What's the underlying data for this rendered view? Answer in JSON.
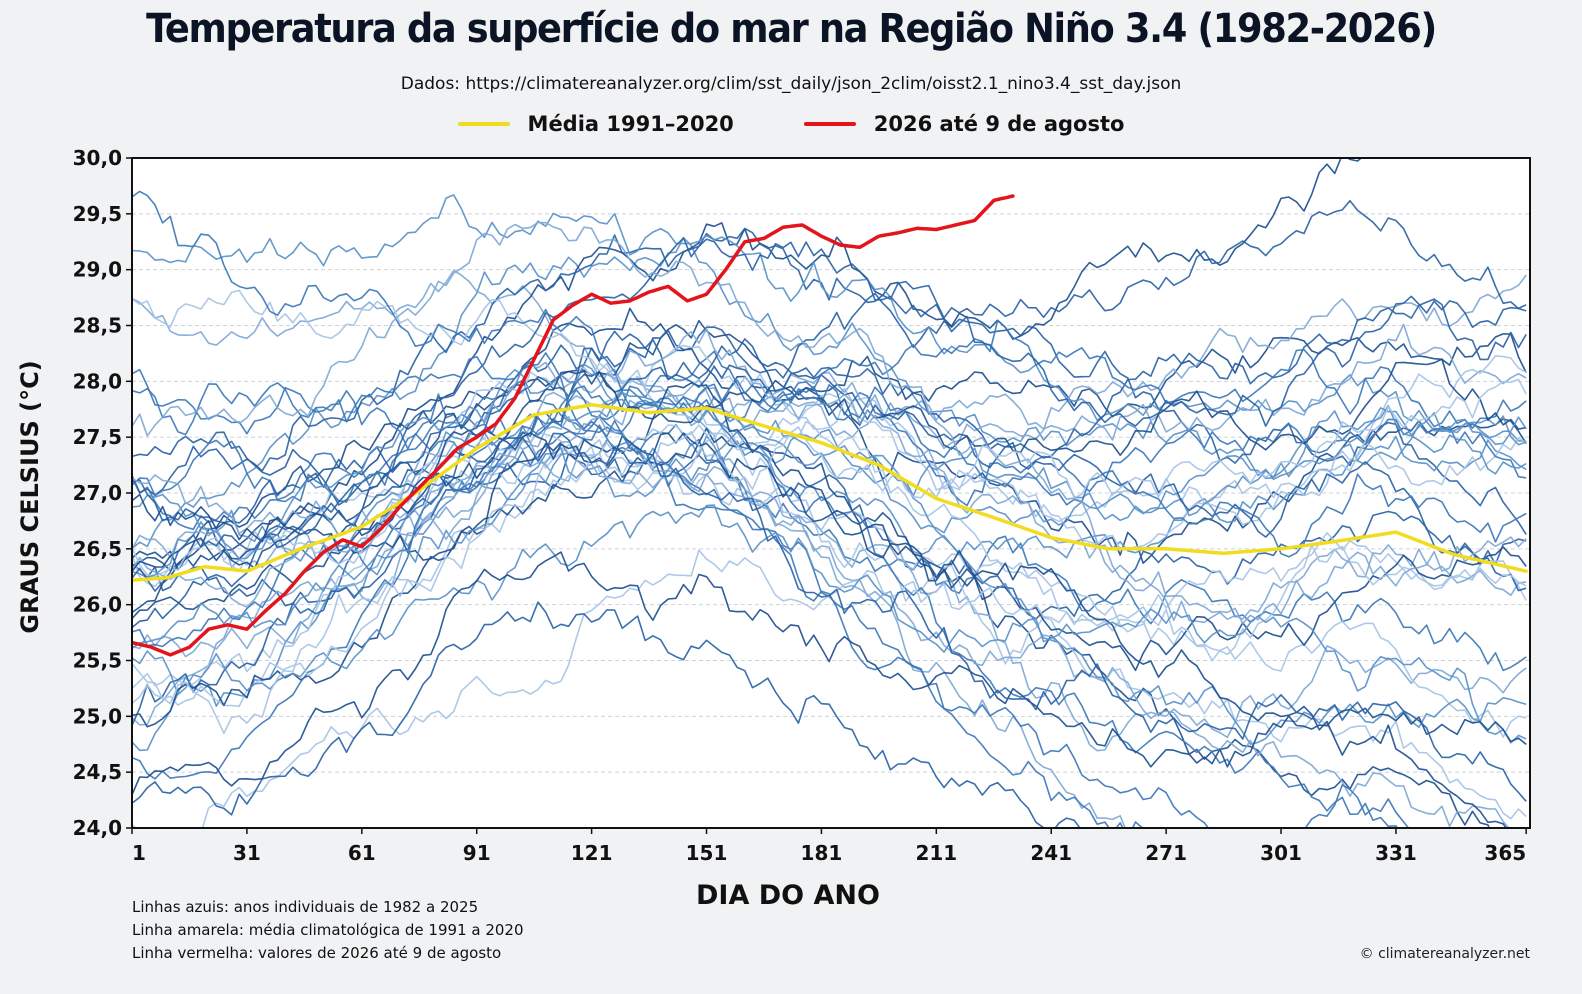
{
  "chart_data": {
    "type": "line",
    "title": "Temperatura da superfície do mar na Região Niño 3.4 (1982-2026)",
    "subtitle": "Dados: https://climatereanalyzer.org/clim/sst_daily/json_2clim/oisst2.1_nino3.4_sst_day.json",
    "xlabel": "DIA DO ANO",
    "ylabel": "GRAUS CELSIUS (°C)",
    "xlim": [
      1,
      366
    ],
    "ylim": [
      24.0,
      30.0
    ],
    "x_ticks": [
      1,
      31,
      61,
      91,
      121,
      151,
      181,
      211,
      241,
      271,
      301,
      331,
      365
    ],
    "y_ticks": [
      "24,0",
      "24,5",
      "25,0",
      "25,5",
      "26,0",
      "26,5",
      "27,0",
      "27,5",
      "28,0",
      "28,5",
      "29,0",
      "29,5",
      "30,0"
    ],
    "y_tick_values": [
      24.0,
      24.5,
      25.0,
      25.5,
      26.0,
      26.5,
      27.0,
      27.5,
      28.0,
      28.5,
      29.0,
      29.5,
      30.0
    ],
    "grid": true,
    "legend_position": "top-center",
    "legend": [
      {
        "label": "Média 1991–2020",
        "color": "#f2dc1f"
      },
      {
        "label": "2026 até 9 de agosto",
        "color": "#e3141b"
      }
    ],
    "series": [
      {
        "name": "Média 1991–2020",
        "color": "#f2dc1f",
        "x": [
          1,
          10,
          20,
          31,
          45,
          61,
          75,
          91,
          106,
          121,
          136,
          151,
          166,
          181,
          196,
          211,
          226,
          241,
          256,
          271,
          286,
          301,
          316,
          331,
          346,
          365
        ],
        "y": [
          26.22,
          26.24,
          26.34,
          26.3,
          26.5,
          26.7,
          27.0,
          27.4,
          27.7,
          27.79,
          27.72,
          27.76,
          27.6,
          27.45,
          27.25,
          26.95,
          26.78,
          26.6,
          26.5,
          26.5,
          26.46,
          26.5,
          26.57,
          26.65,
          26.45,
          26.3
        ]
      },
      {
        "name": "2026 até 9 de agosto",
        "color": "#e3141b",
        "x": [
          1,
          6,
          11,
          16,
          21,
          26,
          31,
          36,
          41,
          46,
          51,
          56,
          61,
          66,
          71,
          76,
          81,
          86,
          91,
          96,
          101,
          106,
          111,
          116,
          121,
          126,
          131,
          136,
          141,
          146,
          151,
          156,
          161,
          166,
          171,
          176,
          181,
          186,
          191,
          196,
          201,
          206,
          211,
          216,
          221,
          226,
          231
        ],
        "y": [
          25.66,
          25.62,
          25.55,
          25.62,
          25.78,
          25.82,
          25.78,
          25.95,
          26.1,
          26.3,
          26.47,
          26.58,
          26.52,
          26.68,
          26.88,
          27.05,
          27.22,
          27.4,
          27.5,
          27.62,
          27.85,
          28.2,
          28.55,
          28.68,
          28.78,
          28.7,
          28.72,
          28.8,
          28.85,
          28.72,
          28.78,
          29.0,
          29.25,
          29.28,
          29.38,
          29.4,
          29.3,
          29.22,
          29.2,
          29.3,
          29.33,
          29.37,
          29.36,
          29.4,
          29.44,
          29.62,
          29.66
        ]
      }
    ],
    "blue_years": {
      "first_year": 1982,
      "last_year": 2025,
      "color_palette": [
        "#1d4f8f",
        "#2a63a6",
        "#3d78b8",
        "#5a91c8",
        "#7fa8d6",
        "#a7c4e6"
      ]
    }
  },
  "notes": [
    "Linhas azuis: anos individuais de 1982 a 2025",
    "Linha amarela: média climatológica de 1991 a 2020",
    "Linha vermelha: valores de 2026 até 9 de agosto"
  ],
  "credit": "© climatereanalyzer.net"
}
